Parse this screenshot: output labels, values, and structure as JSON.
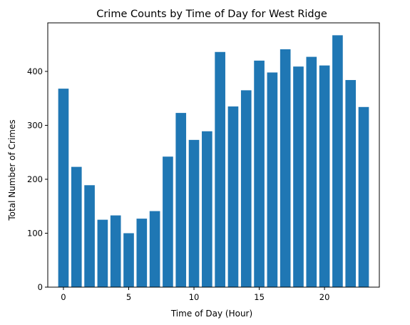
{
  "chart_data": {
    "type": "bar",
    "title": "Crime Counts by Time of Day for West Ridge",
    "xlabel": "Time of Day (Hour)",
    "ylabel": "Total Number of Crimes",
    "x": [
      0,
      1,
      2,
      3,
      4,
      5,
      6,
      7,
      8,
      9,
      10,
      11,
      12,
      13,
      14,
      15,
      16,
      17,
      18,
      19,
      20,
      21,
      22,
      23
    ],
    "values": [
      368,
      223,
      189,
      125,
      133,
      100,
      127,
      141,
      242,
      323,
      273,
      289,
      436,
      335,
      365,
      420,
      398,
      441,
      409,
      427,
      411,
      467,
      384,
      334
    ],
    "xlim": [
      -1.2,
      24.2
    ],
    "ylim": [
      0,
      490
    ],
    "xticks": [
      0,
      5,
      10,
      15,
      20
    ],
    "yticks": [
      0,
      100,
      200,
      300,
      400
    ],
    "bar_color": "#1f77b4",
    "grid": false,
    "legend": "none"
  }
}
